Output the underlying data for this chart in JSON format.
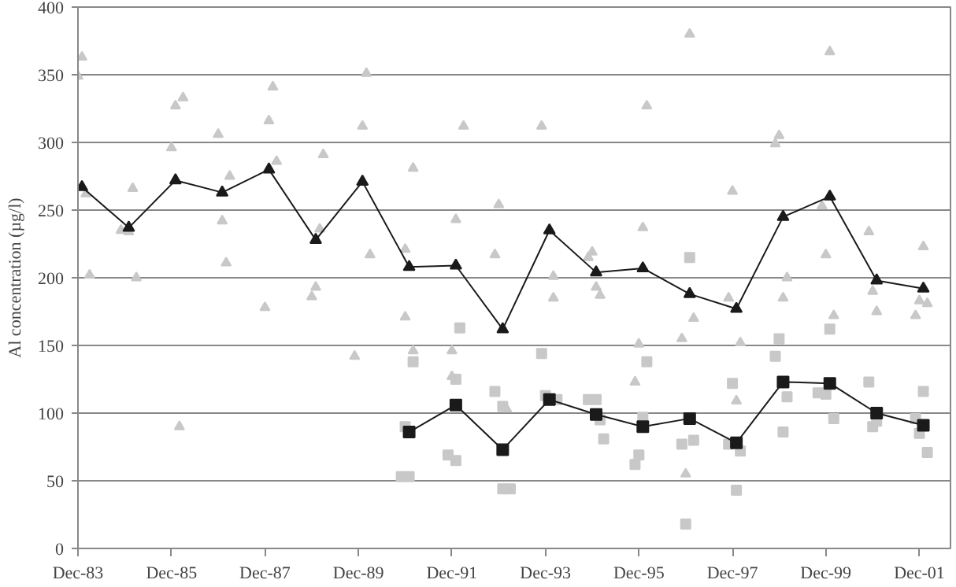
{
  "chart_data": {
    "type": "scatter",
    "ylabel": "Al concentration (µg/l)",
    "xlim": [
      "1983-12",
      "2002-08"
    ],
    "ylim": [
      0,
      400
    ],
    "xticks": [
      {
        "value": "1983-12",
        "label": "Dec-83"
      },
      {
        "value": "1985-12",
        "label": "Dec-85"
      },
      {
        "value": "1987-12",
        "label": "Dec-87"
      },
      {
        "value": "1989-12",
        "label": "Dec-89"
      },
      {
        "value": "1991-12",
        "label": "Dec-91"
      },
      {
        "value": "1993-12",
        "label": "Dec-93"
      },
      {
        "value": "1995-12",
        "label": "Dec-95"
      },
      {
        "value": "1997-12",
        "label": "Dec-97"
      },
      {
        "value": "1999-12",
        "label": "Dec-99"
      },
      {
        "value": "2001-12",
        "label": "Dec-01"
      }
    ],
    "yticks": [
      0,
      50,
      100,
      150,
      200,
      250,
      300,
      350,
      400
    ],
    "grid": "y",
    "series": [
      {
        "marker": "triangle",
        "color": "#c8c8c8",
        "x": [
          "1984-01",
          "1983-12",
          "1984-02",
          "1984-03",
          "1984-11",
          "1985-01",
          "1985-02",
          "1985-03",
          "1985-12",
          "1986-01",
          "1986-03",
          "1986-02",
          "1986-12",
          "1987-03",
          "1987-01",
          "1987-02",
          "1988-01",
          "1988-02",
          "1988-03",
          "1987-12",
          "1989-03",
          "1989-02",
          "1989-01",
          "1988-12",
          "1990-02",
          "1990-01",
          "1990-03",
          "1991-02",
          "1990-12",
          "1990-12",
          "1991-02",
          "1989-11",
          "1992-03",
          "1992-01",
          "1991-12",
          "1992-12",
          "1992-11",
          "1993-11",
          "1994-02",
          "1994-02",
          "1994-12",
          "1994-11",
          "1995-01",
          "1995-02",
          "1996-01",
          "1995-12",
          "1995-11",
          "1996-02",
          "1993-02",
          "1991-12",
          "1997-01",
          "1998-12",
          "1998-11",
          "2000-01",
          "1997-12",
          "1999-11",
          "1999-12",
          "2000-02",
          "1999-02",
          "1999-01",
          "1997-11",
          "1997-02",
          "1996-11",
          "1998-02",
          "1998-01",
          "1996-12",
          "2000-11",
          "2000-12",
          "2001-01",
          "2001-11",
          "2002-01",
          "2001-12",
          "2002-02"
        ],
        "values": [
          363,
          349,
          262,
          202,
          235,
          234,
          266,
          200,
          296,
          327,
          333,
          90,
          306,
          275,
          242,
          211,
          316,
          341,
          286,
          178,
          291,
          236,
          193,
          186,
          351,
          312,
          217,
          281,
          221,
          171,
          146,
          142,
          312,
          243,
          146,
          254,
          217,
          312,
          201,
          185,
          219,
          215,
          193,
          187,
          237,
          151,
          123,
          327,
          103,
          127,
          380,
          305,
          299,
          367,
          264,
          253,
          217,
          172,
          200,
          185,
          185,
          170,
          155,
          152,
          109,
          55,
          234,
          190,
          175,
          172,
          223,
          183,
          181
        ]
      },
      {
        "marker": "square",
        "color": "#c8c8c8",
        "x": [
          "1992-02",
          "1991-02",
          "1992-01",
          "1990-12",
          "1990-11",
          "1991-01",
          "1991-11",
          "1992-01",
          "1992-11",
          "1993-01",
          "1993-01",
          "1993-03",
          "1993-11",
          "1993-12",
          "1994-03",
          "1994-11",
          "1995-01",
          "1995-02",
          "1995-03",
          "1996-02",
          "1996-01",
          "1995-12",
          "1995-11",
          "1997-01",
          "1996-11",
          "1997-02",
          "1996-12",
          "1997-12",
          "1998-02",
          "1998-01",
          "1997-11",
          "1998-12",
          "1998-11",
          "1999-02",
          "1999-01",
          "2000-01",
          "1999-10",
          "1999-12",
          "2000-02",
          "2000-11",
          "2000-12",
          "2001-01",
          "2001-11",
          "2001-12",
          "2002-01",
          "2002-02"
        ],
        "values": [
          163,
          138,
          125,
          90,
          53,
          53,
          69,
          65,
          116,
          105,
          44,
          44,
          144,
          113,
          110,
          110,
          110,
          95,
          81,
          138,
          97,
          69,
          62,
          215,
          77,
          80,
          18,
          122,
          72,
          43,
          77,
          155,
          142,
          112,
          86,
          162,
          115,
          114,
          96,
          123,
          90,
          94,
          96,
          85,
          116,
          71
        ]
      },
      {
        "type": "line",
        "marker": "triangle",
        "color": "#1a1a1a",
        "x": [
          "1984-01",
          "1985-01",
          "1986-01",
          "1987-01",
          "1988-01",
          "1989-01",
          "1990-01",
          "1991-01",
          "1992-01",
          "1993-01",
          "1994-01",
          "1995-01",
          "1996-01",
          "1997-01",
          "1998-01",
          "1999-01",
          "2000-01",
          "2001-01",
          "2002-01"
        ],
        "values": [
          267,
          237,
          272,
          263,
          280,
          228,
          271,
          208,
          209,
          162,
          235,
          204,
          207,
          188,
          177,
          245,
          260,
          198,
          192
        ]
      },
      {
        "type": "line",
        "marker": "square",
        "color": "#1a1a1a",
        "x": [
          "1991-01",
          "1992-01",
          "1993-01",
          "1994-01",
          "1995-01",
          "1996-01",
          "1997-01",
          "1998-01",
          "1999-01",
          "2000-01",
          "2001-01",
          "2002-01"
        ],
        "values": [
          86,
          106,
          73,
          110,
          99,
          90,
          96,
          78,
          123,
          122,
          100,
          91
        ]
      }
    ]
  }
}
